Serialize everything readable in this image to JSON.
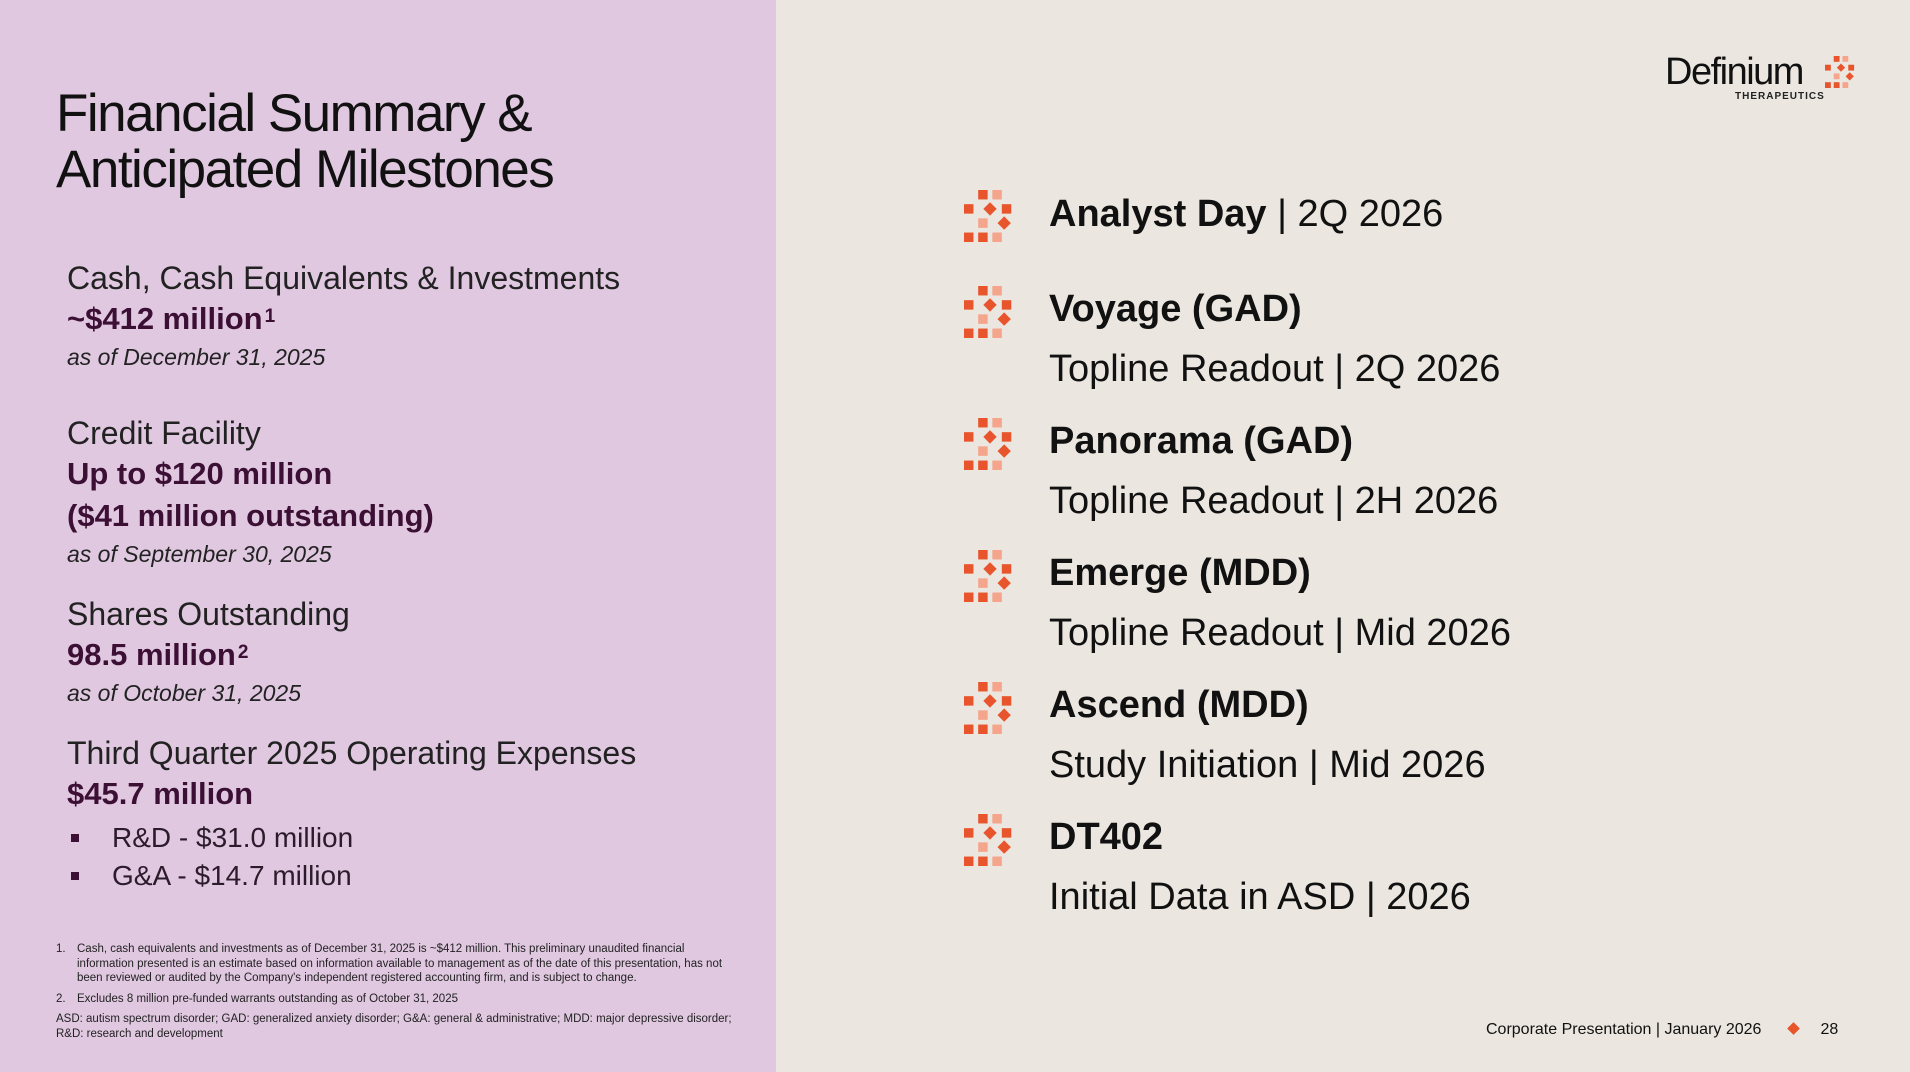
{
  "title": {
    "line1": "Financial Summary &",
    "line2": "Anticipated Milestones"
  },
  "financials": [
    {
      "label": "Cash, Cash Equivalents & Investments",
      "value": "~$412 million",
      "sup": "1",
      "date": "as of December 31, 2025"
    },
    {
      "label": "Credit Facility",
      "value": "Up to $120 million",
      "value2": "($41 million outstanding)",
      "date": "as of September 30, 2025"
    },
    {
      "label": "Shares Outstanding",
      "value": "98.5 million",
      "sup": "2",
      "date": "as of October 31, 2025"
    },
    {
      "label": "Third Quarter 2025 Operating Expenses",
      "value": "$45.7 million",
      "bullets": [
        "R&D - $31.0 million",
        "G&A - $14.7 million"
      ]
    }
  ],
  "footnotes": [
    {
      "num": "1.",
      "text": "Cash, cash equivalents and investments as of December 31, 2025 is ~$412 million. This preliminary unaudited financial information presented is an estimate based on information available to management as of the date of this presentation, has not been reviewed or audited by the Company's independent registered accounting firm, and is subject to change."
    },
    {
      "num": "2.",
      "text": "Excludes 8 million pre-funded warrants outstanding as of October 31, 2025"
    }
  ],
  "abbreviations": "ASD: autism spectrum disorder; GAD: generalized anxiety disorder; G&A: general & administrative; MDD: major depressive disorder; R&D: research and development",
  "logo": {
    "name": "Definium",
    "sub": "THERAPEUTICS"
  },
  "milestones": [
    {
      "title": "Analyst Day",
      "title_suffix": " | 2Q 2026",
      "sub": ""
    },
    {
      "title": "Voyage (GAD)",
      "title_suffix": "",
      "sub": "Topline Readout | 2Q 2026"
    },
    {
      "title": "Panorama (GAD)",
      "title_suffix": "",
      "sub": "Topline Readout | 2H 2026"
    },
    {
      "title": "Emerge (MDD)",
      "title_suffix": "",
      "sub": "Topline Readout | Mid 2026"
    },
    {
      "title": "Ascend (MDD)",
      "title_suffix": "",
      "sub": "Study Initiation | Mid 2026"
    },
    {
      "title": "DT402",
      "title_suffix": "",
      "sub": "Initial Data in ASD | 2026"
    }
  ],
  "footer": {
    "text": "Corporate Presentation | January 2026",
    "page": "28"
  },
  "colors": {
    "left_panel": "#e0c8e0",
    "right_panel": "#ebe6e0",
    "accent": "#e8552c",
    "value_text": "#3c0f34"
  },
  "icons": {
    "milestone": "pixel-burst-icon",
    "logo": "pixel-burst-icon"
  }
}
